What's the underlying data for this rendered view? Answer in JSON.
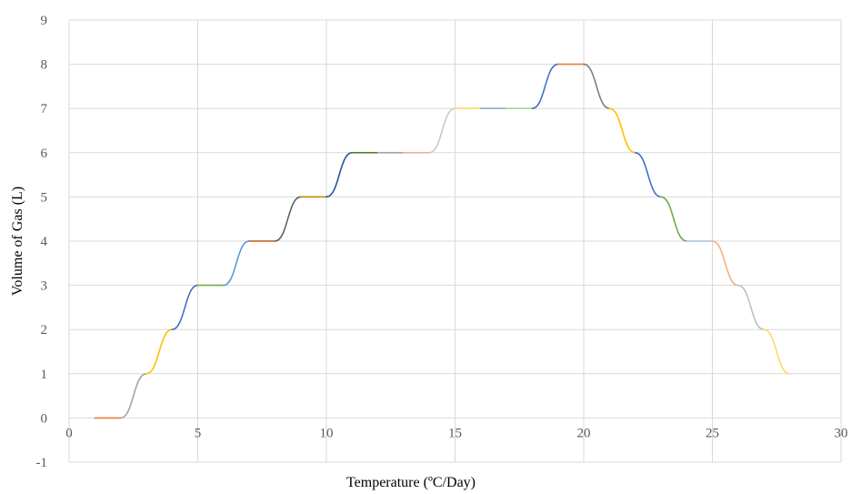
{
  "chart_data": {
    "type": "line",
    "title": "",
    "xlabel": "Temperature (ºC/Day)",
    "ylabel": "Volume of Gas (L)",
    "xlim": [
      0,
      30
    ],
    "ylim": [
      -1,
      9
    ],
    "x_ticks": [
      "0",
      "5",
      "10",
      "15",
      "20",
      "25",
      "30"
    ],
    "y_ticks": [
      "-1",
      "0",
      "1",
      "2",
      "3",
      "4",
      "5",
      "6",
      "7",
      "8",
      "9"
    ],
    "grid": true,
    "legend": "none",
    "smooth": true,
    "series": [
      {
        "color": "#ED7D31",
        "points": [
          [
            1,
            0
          ],
          [
            2,
            0
          ]
        ]
      },
      {
        "color": "#A5A5A5",
        "points": [
          [
            2,
            0
          ],
          [
            3,
            1
          ]
        ]
      },
      {
        "color": "#FFC000",
        "points": [
          [
            3,
            1
          ],
          [
            4,
            2
          ]
        ]
      },
      {
        "color": "#4472C4",
        "points": [
          [
            4,
            2
          ],
          [
            5,
            3
          ]
        ]
      },
      {
        "color": "#70AD47",
        "points": [
          [
            5,
            3
          ],
          [
            6,
            3
          ]
        ]
      },
      {
        "color": "#5B9BD5",
        "points": [
          [
            6,
            3
          ],
          [
            7,
            4
          ]
        ]
      },
      {
        "color": "#C55A11",
        "points": [
          [
            7,
            4
          ],
          [
            8,
            4
          ]
        ]
      },
      {
        "color": "#636363",
        "points": [
          [
            8,
            4
          ],
          [
            9,
            5
          ]
        ]
      },
      {
        "color": "#BF8F00",
        "points": [
          [
            9,
            5
          ],
          [
            10,
            5
          ]
        ]
      },
      {
        "color": "#2F5597",
        "points": [
          [
            10,
            5
          ],
          [
            11,
            6
          ]
        ]
      },
      {
        "color": "#548235",
        "points": [
          [
            11,
            6
          ],
          [
            12,
            6
          ]
        ]
      },
      {
        "color": "#A5A5A5",
        "points": [
          [
            12,
            6
          ],
          [
            13,
            6
          ]
        ]
      },
      {
        "color": "#F4B183",
        "points": [
          [
            13,
            6
          ],
          [
            14,
            6
          ]
        ]
      },
      {
        "color": "#C9C9C9",
        "points": [
          [
            14,
            6
          ],
          [
            15,
            7
          ]
        ]
      },
      {
        "color": "#FFD966",
        "points": [
          [
            15,
            7
          ],
          [
            16,
            7
          ]
        ]
      },
      {
        "color": "#8FAADC",
        "points": [
          [
            16,
            7
          ],
          [
            17,
            7
          ]
        ]
      },
      {
        "color": "#A9D18E",
        "points": [
          [
            17,
            7
          ],
          [
            18,
            7
          ]
        ]
      },
      {
        "color": "#4472C4",
        "points": [
          [
            18,
            7
          ],
          [
            19,
            8
          ]
        ]
      },
      {
        "color": "#ED7D31",
        "points": [
          [
            19,
            8
          ],
          [
            20,
            8
          ]
        ]
      },
      {
        "color": "#808080",
        "points": [
          [
            20,
            8
          ],
          [
            21,
            7
          ]
        ]
      },
      {
        "color": "#FFC000",
        "points": [
          [
            21,
            7
          ],
          [
            22,
            6
          ]
        ]
      },
      {
        "color": "#4472C4",
        "points": [
          [
            22,
            6
          ],
          [
            23,
            5
          ]
        ]
      },
      {
        "color": "#70AD47",
        "points": [
          [
            23,
            5
          ],
          [
            24,
            4
          ]
        ]
      },
      {
        "color": "#9DC3E6",
        "points": [
          [
            24,
            4
          ],
          [
            25,
            4
          ]
        ]
      },
      {
        "color": "#F4B183",
        "points": [
          [
            25,
            4
          ],
          [
            26,
            3
          ]
        ]
      },
      {
        "color": "#BFBFBF",
        "points": [
          [
            26,
            3
          ],
          [
            27,
            2
          ]
        ]
      },
      {
        "color": "#FFD966",
        "points": [
          [
            27,
            2
          ],
          [
            28,
            1
          ]
        ]
      }
    ]
  }
}
